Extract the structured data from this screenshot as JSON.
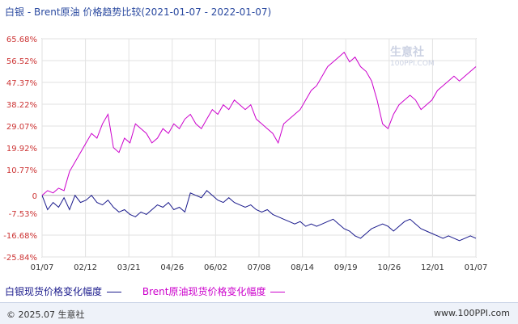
{
  "title": "白银 - Brent原油 价格趋势比较(2021-01-07 - 2022-01-07)",
  "chart_data": {
    "type": "line",
    "y_ticks": [
      "65.68%",
      "56.52%",
      "47.37%",
      "38.22%",
      "29.07%",
      "19.92%",
      "10.77%",
      "0",
      "-7.53%",
      "-16.68%",
      "-25.84%"
    ],
    "y_tick_values": [
      65.68,
      56.52,
      47.37,
      38.22,
      29.07,
      19.92,
      10.77,
      0,
      -7.53,
      -16.68,
      -25.84
    ],
    "ylim": [
      -25.84,
      65.68
    ],
    "x_ticks": [
      "01/07",
      "02/12",
      "03/21",
      "04/26",
      "06/02",
      "07/08",
      "08/14",
      "09/19",
      "10/26",
      "12/01",
      "01/07"
    ],
    "grid": true,
    "series": [
      {
        "name": "白银现货价格变化幅度",
        "color": "#1a1a8c",
        "values": [
          0,
          -6,
          -3,
          -5,
          -1,
          -6,
          0,
          -3,
          -2,
          0,
          -3,
          -4,
          -2,
          -5,
          -7,
          -6,
          -8,
          -9,
          -7,
          -8,
          -6,
          -4,
          -5,
          -3,
          -6,
          -5,
          -7,
          1,
          0,
          -1,
          2,
          0,
          -2,
          -3,
          -1,
          -3,
          -4,
          -5,
          -4,
          -6,
          -7,
          -6,
          -8,
          -9,
          -10,
          -11,
          -12,
          -11,
          -13,
          -12,
          -13,
          -12,
          -11,
          -10,
          -12,
          -14,
          -15,
          -17,
          -18,
          -16,
          -14,
          -13,
          -12,
          -13,
          -15,
          -13,
          -11,
          -10,
          -12,
          -14,
          -15,
          -16,
          -17,
          -18,
          -17,
          -18,
          -19,
          -18,
          -17,
          -18
        ]
      },
      {
        "name": "Brent原油现货价格变化幅度",
        "color": "#cc00cc",
        "values": [
          0,
          2,
          1,
          3,
          2,
          10,
          14,
          18,
          22,
          26,
          24,
          30,
          34,
          20,
          18,
          24,
          22,
          30,
          28,
          26,
          22,
          24,
          28,
          26,
          30,
          28,
          32,
          34,
          30,
          28,
          32,
          36,
          34,
          38,
          36,
          40,
          38,
          36,
          38,
          32,
          30,
          28,
          26,
          22,
          30,
          32,
          34,
          36,
          40,
          44,
          46,
          50,
          54,
          56,
          58,
          60,
          56,
          58,
          54,
          52,
          48,
          40,
          30,
          28,
          34,
          38,
          40,
          42,
          40,
          36,
          38,
          40,
          44,
          46,
          48,
          50,
          48,
          50,
          52,
          54
        ]
      }
    ]
  },
  "legend": {
    "silver_label": "白银现货价格变化幅度",
    "brent_label": "Brent原油现货价格变化幅度"
  },
  "watermark": {
    "brand": "生意社",
    "url": "100PPI.COM"
  },
  "footer": {
    "copyright": "© 2025.07 生意社",
    "site": "www.100PPI.com"
  }
}
